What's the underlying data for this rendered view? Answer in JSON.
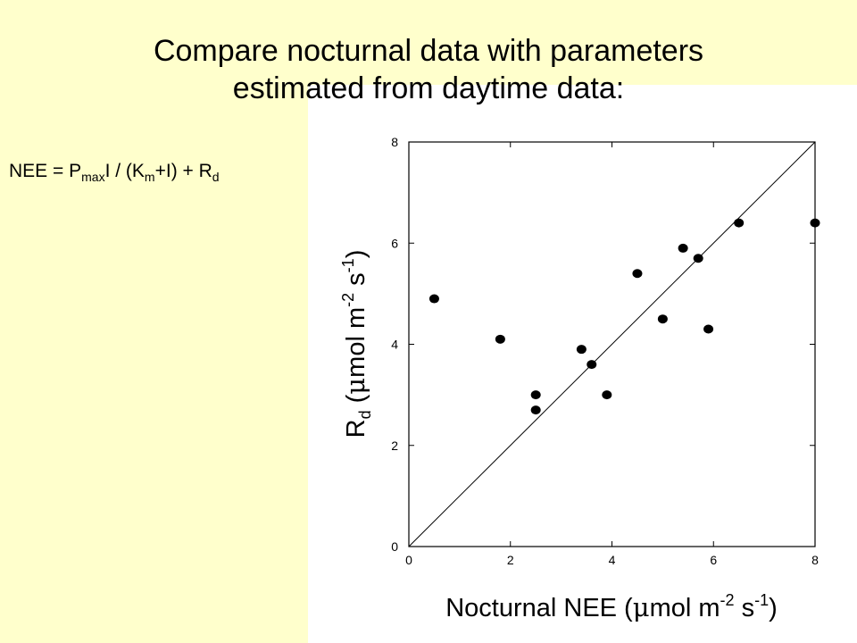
{
  "slide": {
    "title_line1": "Compare nocturnal data with parameters",
    "title_line2": "estimated from daytime data:",
    "equation": {
      "p1": "NEE = P",
      "s1": "max",
      "p2": "I / (K",
      "s2": "m",
      "p3": "+I) + R",
      "s3": "d"
    },
    "background_color": "#ffffcc",
    "panel_color": "#ffffff"
  },
  "chart_data": {
    "type": "scatter",
    "title": "",
    "xlabel": "Nocturnal NEE (μmol m⁻² s⁻¹)",
    "ylabel": "R_d (μmol m⁻² s⁻¹)",
    "xlabel_parts": {
      "a": "Nocturnal NEE (",
      "b": "μ",
      "c": "mol m",
      "d": "-2",
      "e": " s",
      "f": "-1",
      "g": ")"
    },
    "ylabel_parts": {
      "a": "R",
      "b": "d",
      "c": " (",
      "d": "μ",
      "e": "mol m",
      "f": "-2",
      "g": " s",
      "h": "-1",
      "i": ")"
    },
    "xlim": [
      0,
      8
    ],
    "ylim": [
      0,
      8
    ],
    "xticks": [
      "0",
      "2",
      "4",
      "6",
      "8"
    ],
    "yticks": [
      "0",
      "2",
      "4",
      "6",
      "8"
    ],
    "grid": false,
    "reference_line": {
      "type": "1:1",
      "from": [
        0,
        0
      ],
      "to": [
        8,
        8
      ]
    },
    "points": [
      {
        "x": 0.5,
        "y": 4.9
      },
      {
        "x": 1.8,
        "y": 4.1
      },
      {
        "x": 2.5,
        "y": 3.0
      },
      {
        "x": 2.5,
        "y": 2.7
      },
      {
        "x": 3.4,
        "y": 3.9
      },
      {
        "x": 3.6,
        "y": 3.6
      },
      {
        "x": 3.9,
        "y": 3.0
      },
      {
        "x": 4.5,
        "y": 5.4
      },
      {
        "x": 5.0,
        "y": 4.5
      },
      {
        "x": 5.4,
        "y": 5.9
      },
      {
        "x": 5.7,
        "y": 5.7
      },
      {
        "x": 5.9,
        "y": 4.3
      },
      {
        "x": 6.5,
        "y": 6.4
      },
      {
        "x": 8.0,
        "y": 6.4
      }
    ],
    "marker_color": "#000000"
  }
}
